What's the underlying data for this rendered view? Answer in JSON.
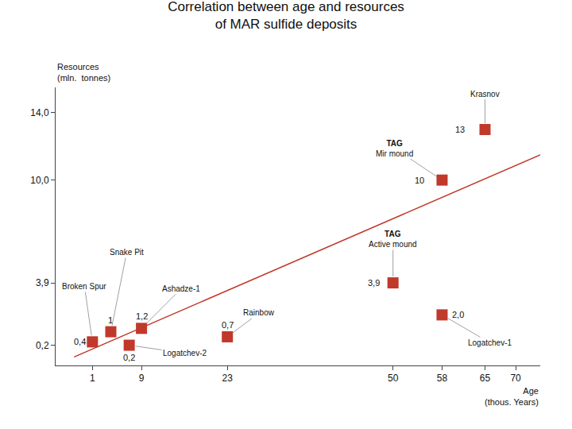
{
  "chart_data": {
    "type": "scatter",
    "title": "Correlation between age and resources\nof MAR sulfide deposits",
    "xlabel": "Age\n(thous. Years)",
    "ylabel": "Resources\n(mln.  tonnes)",
    "series": [
      {
        "type": "line",
        "color": "#c0392b",
        "line_style": "solid",
        "x": [
          -2,
          74
        ],
        "values": [
          -0.5,
          11.5
        ]
      },
      {
        "type": "scatter",
        "color": "#c0392b",
        "marker": "square",
        "x": [
          1,
          4,
          7,
          9,
          23,
          50,
          58,
          58,
          65
        ],
        "values": [
          0.4,
          1.0,
          0.2,
          1.2,
          0.7,
          3.9,
          2.0,
          10.0,
          13.0
        ],
        "value_labels": [
          "0,4",
          "1",
          "0,2",
          "1,2",
          "0,7",
          "3,9",
          "2,0",
          "10",
          "13"
        ],
        "annotations": [
          "Broken Spur",
          "Snake Pit",
          "Logatchev-2",
          "Ashadze-1",
          "Rainbow",
          "TAG\nActive mound",
          "Logatchev-1",
          "TAG\nMir mound",
          "Krasnov"
        ]
      }
    ],
    "data_labels": true,
    "xlim": [
      -5,
      74
    ],
    "ylim": [
      -1,
      15.5
    ],
    "xticks": [
      1,
      9,
      23,
      50,
      58,
      65,
      70
    ],
    "yticks": [
      {
        "value": 0.2,
        "label": "0,2"
      },
      {
        "value": 3.9,
        "label": "3,9"
      },
      {
        "value": 10.0,
        "label": "10,0"
      },
      {
        "value": 14.0,
        "label": "14,0"
      }
    ],
    "grid": false
  }
}
